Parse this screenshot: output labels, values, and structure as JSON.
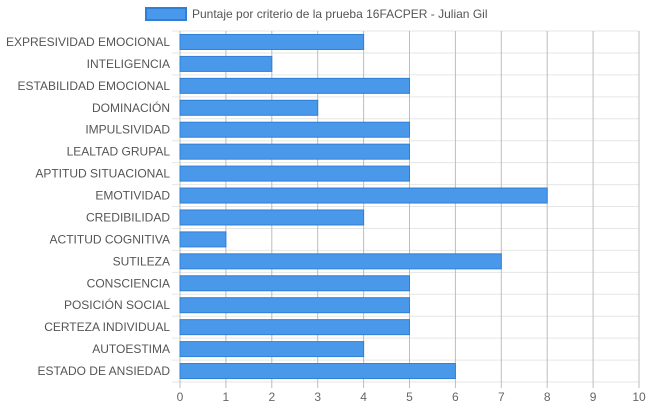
{
  "chart_data": {
    "type": "bar",
    "orientation": "horizontal",
    "categories": [
      "EXPRESIVIDAD EMOCIONAL",
      "INTELIGENCIA",
      "ESTABILIDAD EMOCIONAL",
      "DOMINACIÓN",
      "IMPULSIVIDAD",
      "LEALTAD GRUPAL",
      "APTITUD SITUACIONAL",
      "EMOTIVIDAD",
      "CREDIBILIDAD",
      "ACTITUD COGNITIVA",
      "SUTILEZA",
      "CONSCIENCIA",
      "POSICIÓN SOCIAL",
      "CERTEZA INDIVIDUAL",
      "AUTOESTIMA",
      "ESTADO DE ANSIEDAD"
    ],
    "series": [
      {
        "name": "Puntaje por criterio de la prueba 16FACPER - Julian Gil",
        "values": [
          4,
          2,
          5,
          3,
          5,
          5,
          5,
          8,
          4,
          1,
          7,
          5,
          5,
          5,
          4,
          6
        ]
      }
    ],
    "xlim": [
      0,
      10
    ],
    "x_ticks": [
      "0",
      "1",
      "2",
      "3",
      "4",
      "5",
      "6",
      "7",
      "8",
      "9",
      "10"
    ],
    "grid": true,
    "legend_position": "top-center",
    "colors": {
      "bar_fill": "#4a98ea",
      "bar_stroke": "#2f7fd6",
      "grid": "#e6e6e6",
      "grid_major": "#bdbdbd"
    }
  }
}
